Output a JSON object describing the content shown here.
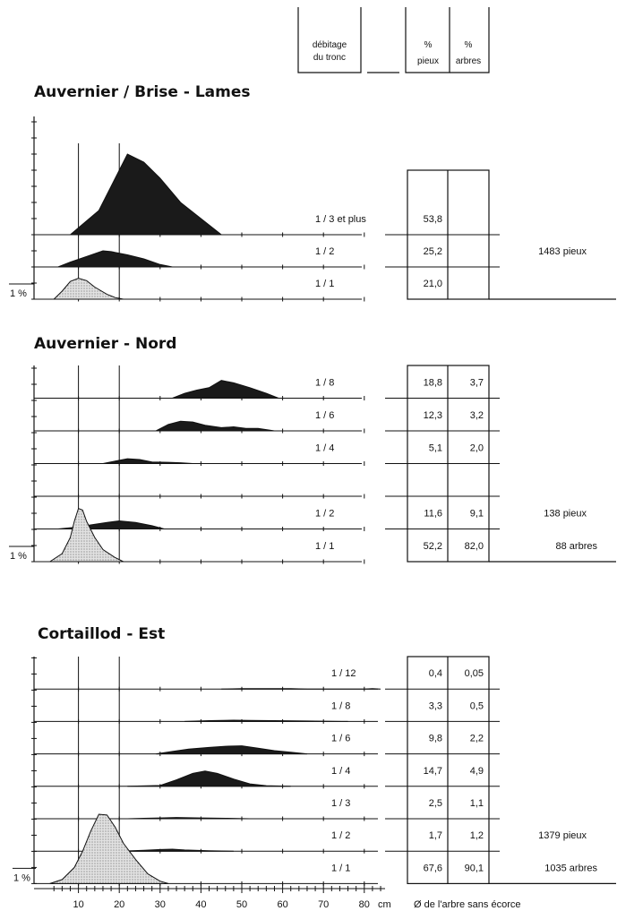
{
  "header": {
    "col1": [
      "débitage",
      "du tronc"
    ],
    "col2": [
      "%",
      "pieux"
    ],
    "col3": [
      "%",
      "arbres"
    ]
  },
  "scale_label": "1 %",
  "x_axis": {
    "ticks": [
      10,
      20,
      30,
      40,
      50,
      60,
      70,
      80
    ],
    "unit": "cm",
    "label": "Ø de l'arbre sans écorce",
    "xlim": [
      0,
      90
    ]
  },
  "chart_data": [
    {
      "type": "area",
      "title": "Auvernier / Brise - Lames",
      "ref_lines": [
        10,
        20
      ],
      "rows": [
        {
          "label": "1 / 3  et plus",
          "pct_pieux": "53,8",
          "pct_arbres": "",
          "fill": "#1a1a1a",
          "x": [
            8,
            15,
            18,
            22,
            26,
            30,
            35,
            40,
            45
          ],
          "y": [
            0,
            3,
            6,
            10,
            9,
            7,
            4,
            2,
            0
          ]
        },
        {
          "label": "1 / 2",
          "pct_pieux": "25,2",
          "pct_arbres": "",
          "fill": "#1a1a1a",
          "x": [
            5,
            8,
            12,
            16,
            18,
            22,
            26,
            30,
            33
          ],
          "y": [
            0,
            0.6,
            1.3,
            2,
            1.9,
            1.5,
            1,
            0.3,
            0
          ]
        },
        {
          "label": "1 / 1",
          "pct_pieux": "21,0",
          "pct_arbres": "",
          "fill": "#d4d4d4",
          "stipple": true,
          "x": [
            4,
            6,
            8,
            10,
            12,
            14,
            17,
            19,
            21
          ],
          "y": [
            0,
            1,
            2.2,
            2.6,
            2.3,
            1.5,
            0.6,
            0.2,
            0
          ]
        }
      ],
      "note": "1483  pieux",
      "note2": ""
    },
    {
      "type": "area",
      "title": "Auvernier - Nord",
      "ref_lines": [
        10,
        20
      ],
      "rows": [
        {
          "label": "1 / 8",
          "pct_pieux": "18,8",
          "pct_arbres": "3,7",
          "fill": "#1a1a1a",
          "outline_extra": true,
          "x": [
            33,
            36,
            39,
            42,
            45,
            48,
            52,
            56,
            59
          ],
          "y": [
            0,
            0.6,
            1,
            1.3,
            2.2,
            1.9,
            1.3,
            0.6,
            0
          ]
        },
        {
          "label": "1 / 6",
          "pct_pieux": "12,3",
          "pct_arbres": "3,2",
          "fill": "#1a1a1a",
          "x": [
            29,
            32,
            35,
            38,
            41,
            45,
            48,
            51,
            54,
            58
          ],
          "y": [
            0,
            0.8,
            1.2,
            1.1,
            0.7,
            0.4,
            0.5,
            0.3,
            0.3,
            0
          ]
        },
        {
          "label": "1 / 4",
          "pct_pieux": "5,1",
          "pct_arbres": "2,0",
          "fill": "#1a1a1a",
          "x": [
            16,
            19,
            22,
            25,
            28,
            32,
            35,
            38
          ],
          "y": [
            0,
            0.3,
            0.6,
            0.5,
            0.2,
            0.15,
            0.1,
            0
          ]
        },
        {
          "label": "",
          "pct_pieux": "",
          "pct_arbres": "",
          "fill": "#1a1a1a",
          "x": [],
          "y": []
        },
        {
          "label": "1 / 2",
          "pct_pieux": "11,6",
          "pct_arbres": "9,1",
          "fill": "#1a1a1a",
          "x": [
            5,
            9,
            13,
            17,
            20,
            24,
            28,
            31
          ],
          "y": [
            0,
            0.2,
            0.5,
            0.8,
            1,
            0.8,
            0.4,
            0
          ]
        },
        {
          "label": "1 / 1",
          "pct_pieux": "52,2",
          "pct_arbres": "82,0",
          "fill": "#d4d4d4",
          "stipple": true,
          "x": [
            3,
            6,
            8,
            9,
            10,
            11,
            12,
            14,
            16,
            19,
            21
          ],
          "y": [
            0,
            1,
            3,
            5,
            6.6,
            6.4,
            5,
            3,
            1.5,
            0.5,
            0
          ]
        }
      ],
      "note": "138  pieux",
      "note2": "88  arbres"
    },
    {
      "type": "area",
      "title": "Cortaillod - Est",
      "ref_lines": [
        10,
        20
      ],
      "rows": [
        {
          "label": "1 / 12",
          "pct_pieux": "0,4",
          "pct_arbres": "0,05",
          "fill": "#1a1a1a",
          "x": [
            45,
            50,
            55,
            62,
            66,
            80,
            82,
            84
          ],
          "y": [
            0,
            0.05,
            0.06,
            0.05,
            0,
            0,
            0.06,
            0
          ]
        },
        {
          "label": "1 / 8",
          "pct_pieux": "3,3",
          "pct_arbres": "0,5",
          "fill": "#1a1a1a",
          "x": [
            36,
            42,
            48,
            52,
            58,
            66,
            76
          ],
          "y": [
            0,
            0.1,
            0.15,
            0.12,
            0.1,
            0.05,
            0
          ]
        },
        {
          "label": "1 / 6",
          "pct_pieux": "9,8",
          "pct_arbres": "2,2",
          "fill": "#1a1a1a",
          "outline_extra": true,
          "x": [
            29,
            33,
            37,
            42,
            46,
            50,
            54,
            58,
            62,
            66
          ],
          "y": [
            0,
            0.3,
            0.6,
            0.8,
            0.95,
            1,
            0.7,
            0.4,
            0.2,
            0
          ]
        },
        {
          "label": "1 / 4",
          "pct_pieux": "14,7",
          "pct_arbres": "4,9",
          "fill": "#1a1a1a",
          "x": [
            22,
            30,
            34,
            38,
            41,
            44,
            48,
            52,
            56,
            62
          ],
          "y": [
            0,
            0.1,
            0.8,
            1.6,
            1.9,
            1.6,
            0.9,
            0.3,
            0.08,
            0
          ]
        },
        {
          "label": "1 / 3",
          "pct_pieux": "2,5",
          "pct_arbres": "1,1",
          "fill": "#1a1a1a",
          "x": [
            22,
            26,
            30,
            34,
            40,
            46,
            52
          ],
          "y": [
            0,
            0.06,
            0.1,
            0.15,
            0.1,
            0.05,
            0
          ]
        },
        {
          "label": "1 / 2",
          "pct_pieux": "1,7",
          "pct_arbres": "1,2",
          "fill": "#1a1a1a",
          "x": [
            20,
            26,
            30,
            33,
            36,
            42,
            48
          ],
          "y": [
            0,
            0.1,
            0.2,
            0.25,
            0.15,
            0.05,
            0
          ]
        },
        {
          "label": "1 / 1",
          "pct_pieux": "67,6",
          "pct_arbres": "90,1",
          "fill": "#d4d4d4",
          "stipple": true,
          "x": [
            3,
            6,
            9,
            11,
            13,
            15,
            17,
            19,
            21,
            24,
            27,
            30,
            32
          ],
          "y": [
            0,
            0.5,
            2,
            4,
            6.5,
            8.6,
            8.5,
            7,
            5,
            3,
            1.2,
            0.3,
            0
          ]
        }
      ],
      "note": "1379  pieux",
      "note2": "1035  arbres"
    }
  ]
}
